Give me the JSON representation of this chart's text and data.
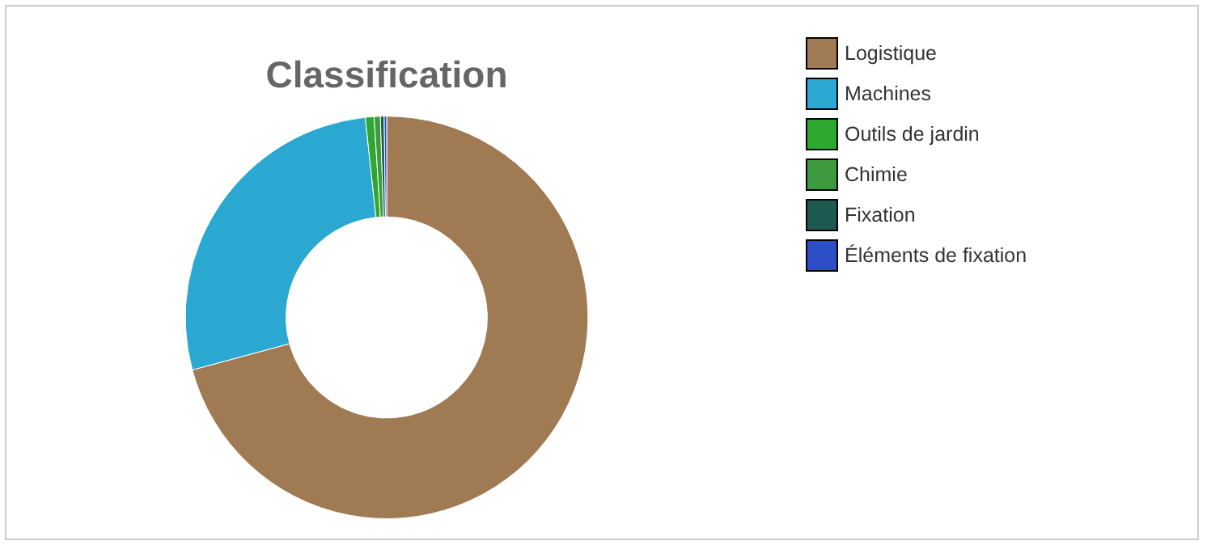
{
  "chart_data": {
    "type": "donut",
    "title": "Classification",
    "categories": [
      "Logistique",
      "Machines",
      "Outils de jardin",
      "Chimie",
      "Fixation",
      "Éléments de fixation"
    ],
    "values": [
      70.8,
      27.5,
      0.7,
      0.5,
      0.3,
      0.2
    ],
    "colors": [
      "#a07a52",
      "#2aa8d2",
      "#2ea82e",
      "#3e9a3e",
      "#1f5a52",
      "#2c4fc8"
    ],
    "legend": "top right"
  }
}
